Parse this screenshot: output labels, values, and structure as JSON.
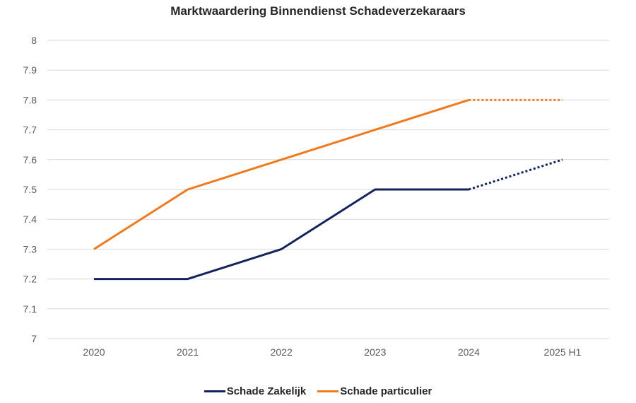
{
  "chart_data": {
    "type": "line",
    "title": "Marktwaardering Binnendienst Schadeverzekaraars",
    "categories": [
      "2020",
      "2021",
      "2022",
      "2023",
      "2024",
      "2025 H1"
    ],
    "ylim": [
      7,
      8
    ],
    "yticks": [
      "7",
      "7.1",
      "7.2",
      "7.3",
      "7.4",
      "7.5",
      "7.6",
      "7.7",
      "7.8",
      "7.9",
      "8"
    ],
    "grid": true,
    "legend_placement": "bottom",
    "series": [
      {
        "name": "Schade Zakelijk",
        "color": "#14225e",
        "values": [
          7.2,
          7.2,
          7.3,
          7.5,
          7.5,
          7.6
        ],
        "dotted_last_segment": true
      },
      {
        "name": "Schade particulier",
        "color": "#f07a1e",
        "values": [
          7.3,
          7.5,
          7.6,
          7.7,
          7.8,
          7.8
        ],
        "dotted_last_segment": true
      }
    ]
  }
}
